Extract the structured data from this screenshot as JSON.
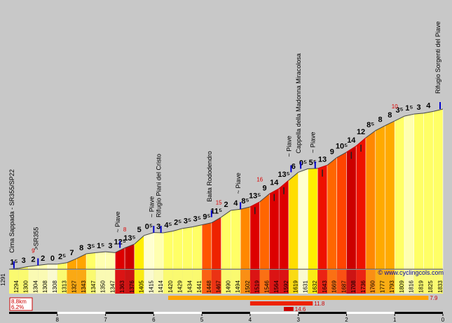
{
  "chart_data": {
    "type": "area",
    "title": "",
    "xlabel": "",
    "ylabel": "",
    "xlim": [
      9,
      0
    ],
    "ylim": [
      1291,
      1833
    ],
    "km_ticks": [
      "8",
      "7",
      "6",
      "5",
      "4",
      "3",
      "2",
      "1",
      "0"
    ],
    "segments": [
      {
        "alt": 1294,
        "grad": "1⁵",
        "color": "#ffff66",
        "red": false
      },
      {
        "alt": 1300,
        "grad": "3",
        "color": "#ffff66",
        "red": false
      },
      {
        "alt": 1304,
        "grad": "2",
        "color": "#ffffb0",
        "red": false
      },
      {
        "alt": 1308,
        "grad": "2",
        "color": "#ffffb0",
        "red": false
      },
      {
        "alt": 1308,
        "grad": "0",
        "color": "#ffffd0",
        "red": false
      },
      {
        "alt": 1313,
        "grad": "2⁵",
        "color": "#ffff66",
        "red": false
      },
      {
        "alt": 1327,
        "grad": "7",
        "color": "#ffa500",
        "red": false
      },
      {
        "alt": 1343,
        "grad": "8",
        "color": "#ffa500",
        "red": false
      },
      {
        "alt": 1347,
        "grad": "3⁵",
        "color": "#ffff66",
        "red": false
      },
      {
        "alt": 1350,
        "grad": "1⁵",
        "color": "#ffffb0",
        "red": false
      },
      {
        "alt": 1347,
        "grad": "3",
        "color": "#ffffb0",
        "red": false
      },
      {
        "alt": 1363,
        "grad": "12⁵",
        "color": "#dd0000",
        "red": false
      },
      {
        "alt": 1376,
        "grad": "13⁵",
        "color": "#cc0000",
        "red": false
      },
      {
        "alt": 1405,
        "grad": "5",
        "color": "#ffee00",
        "red": false
      },
      {
        "alt": 1415,
        "grad": "0⁵",
        "color": "#ffffd0",
        "red": false
      },
      {
        "alt": 1414,
        "grad": "3",
        "color": "#ffffb0",
        "red": false
      },
      {
        "alt": 1420,
        "grad": "4⁵",
        "color": "#ffff66",
        "red": false
      },
      {
        "alt": 1429,
        "grad": "2⁵",
        "color": "#ffff66",
        "red": false
      },
      {
        "alt": 1434,
        "grad": "3⁵",
        "color": "#ffff66",
        "red": false
      },
      {
        "alt": 1441,
        "grad": "3⁵",
        "color": "#ffff66",
        "red": false
      },
      {
        "alt": 1448,
        "grad": "9⁵",
        "color": "#ff5500",
        "red": false
      },
      {
        "alt": 1467,
        "grad": "11⁵",
        "color": "#ee2200",
        "red": false
      },
      {
        "alt": 1490,
        "grad": "2",
        "color": "#ffff66",
        "red": false
      },
      {
        "alt": 1494,
        "grad": "4",
        "color": "#ffff66",
        "red": false
      },
      {
        "alt": 1502,
        "grad": "8⁵",
        "color": "#ff8800",
        "red": false
      },
      {
        "alt": 1519,
        "grad": "13⁵",
        "color": "#dd0000",
        "red": true
      },
      {
        "alt": 1546,
        "grad": "9",
        "color": "#ff6600",
        "red": false
      },
      {
        "alt": 1564,
        "grad": "14",
        "color": "#dd0000",
        "red": true
      },
      {
        "alt": 1592,
        "grad": "13⁵",
        "color": "#dd0000",
        "red": true
      },
      {
        "alt": 1619,
        "grad": "6",
        "color": "#ffdd00",
        "red": false
      },
      {
        "alt": 1631,
        "grad": "0⁵",
        "color": "#ffffd0",
        "red": false
      },
      {
        "alt": 1632,
        "grad": "5⁵",
        "color": "#ffee00",
        "red": false
      },
      {
        "alt": 1643,
        "grad": "13",
        "color": "#ee1100",
        "red": true
      },
      {
        "alt": 1669,
        "grad": "9",
        "color": "#ff6600",
        "red": false
      },
      {
        "alt": 1687,
        "grad": "10⁵",
        "color": "#ff4400",
        "red": false
      },
      {
        "alt": 1708,
        "grad": "14",
        "color": "#cc0000",
        "red": true
      },
      {
        "alt": 1736,
        "grad": "12",
        "color": "#ee1100",
        "red": true
      },
      {
        "alt": 1760,
        "grad": "8⁵",
        "color": "#ff8800",
        "red": false
      },
      {
        "alt": 1777,
        "grad": "8",
        "color": "#ffaa00",
        "red": false
      },
      {
        "alt": 1793,
        "grad": "8",
        "color": "#ffaa00",
        "red": false
      },
      {
        "alt": 1809,
        "grad": "3⁵",
        "color": "#ffff66",
        "red": false
      },
      {
        "alt": 1816,
        "grad": "1⁵",
        "color": "#ffffb0",
        "red": false
      },
      {
        "alt": 1819,
        "grad": "3",
        "color": "#ffff66",
        "red": false
      },
      {
        "alt": 1825,
        "grad": "4",
        "color": "#ffff66",
        "red": false
      },
      {
        "alt": 1833,
        "grad": "",
        "color": "#ffff66",
        "red": false
      }
    ],
    "start_altitude": "1291",
    "max_gradients": [
      {
        "km": 8.5,
        "label": "9"
      },
      {
        "km": 6.6,
        "label": "8"
      },
      {
        "km": 4.65,
        "label": "15"
      },
      {
        "km": 3.8,
        "label": "16"
      },
      {
        "km": 1.0,
        "label": "10"
      }
    ],
    "places": [
      {
        "km": 8.9,
        "label": "Cima Sappada - SR355/SP22"
      },
      {
        "km": 8.4,
        "label": ">SR355"
      },
      {
        "km": 6.7,
        "label": "~ Piave"
      },
      {
        "km": 6.0,
        "label": "~ Piave"
      },
      {
        "km": 5.85,
        "label": "Rifugio Piani del Cristo"
      },
      {
        "km": 4.8,
        "label": "Baita Rododendro"
      },
      {
        "km": 4.2,
        "label": "~ Piave"
      },
      {
        "km": 3.15,
        "label": "~ Piave"
      },
      {
        "km": 2.95,
        "label": "Cappella della Madonna Miracolosa"
      },
      {
        "km": 2.65,
        "label": "~ Piave"
      },
      {
        "km": 0.0,
        "label": "Rifugio Sorgenti del Piave"
      }
    ],
    "summary": {
      "distance": "8.8km",
      "avg_grade": "6.2%"
    },
    "grade_bars": [
      {
        "from_km": 5.7,
        "to_km": 0.3,
        "label": "7.9",
        "color": "#ffa500"
      },
      {
        "from_km": 4.0,
        "to_km": 2.7,
        "label": "11.8",
        "color": "#ee2200"
      },
      {
        "from_km": 3.3,
        "to_km": 3.1,
        "label": "14.6",
        "color": "#cc0000"
      }
    ],
    "watermark": "© www.cyclingcols.com"
  }
}
